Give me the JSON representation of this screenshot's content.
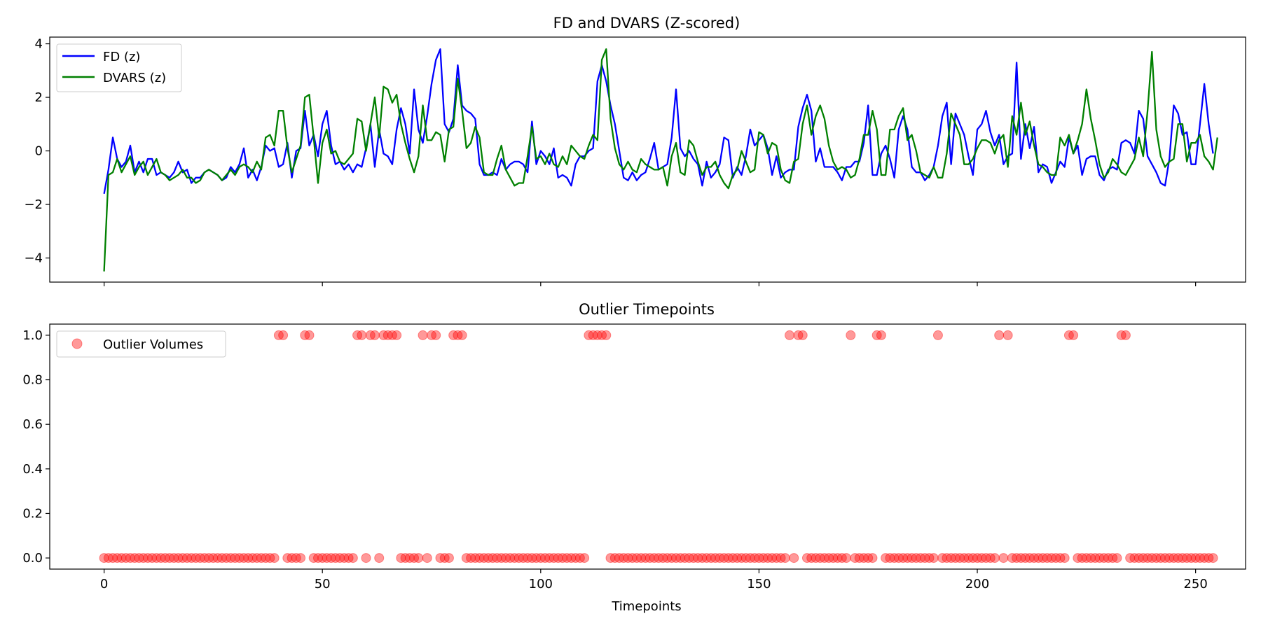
{
  "chart_data": [
    {
      "type": "line",
      "title": "FD and DVARS (Z-scored)",
      "xlabel": "",
      "ylabel": "",
      "xlim": [
        -12.45,
        261.45
      ],
      "ylim": [
        -4.9,
        4.25
      ],
      "xticks": [
        0,
        50,
        100,
        150,
        200,
        250
      ],
      "xtick_labels_visible": false,
      "yticks": [
        -4,
        -2,
        0,
        2,
        4
      ],
      "ytick_labels": [
        "−4",
        "−2",
        "0",
        "2",
        "4"
      ],
      "legend": {
        "position": "top-left"
      },
      "series": [
        {
          "name": "FD (z)",
          "color": "#0000ff",
          "values": [
            -1.6,
            -0.7,
            0.5,
            -0.3,
            -0.6,
            -0.4,
            0.2,
            -0.8,
            -0.4,
            -0.8,
            -0.3,
            -0.3,
            -0.9,
            -0.8,
            -0.9,
            -1.0,
            -0.8,
            -0.4,
            -0.8,
            -0.7,
            -1.2,
            -1.0,
            -1.0,
            -0.8,
            -0.7,
            -0.8,
            -0.9,
            -1.1,
            -1.0,
            -0.6,
            -0.8,
            -0.5,
            0.1,
            -1.0,
            -0.7,
            -1.1,
            -0.6,
            0.2,
            0.0,
            0.1,
            -0.6,
            -0.5,
            0.3,
            -1.0,
            0.0,
            0.1,
            1.5,
            0.2,
            0.6,
            -0.2,
            1.0,
            1.5,
            0.2,
            -0.5,
            -0.4,
            -0.7,
            -0.5,
            -0.8,
            -0.5,
            -0.6,
            0.1,
            1.0,
            -0.6,
            0.8,
            -0.1,
            -0.2,
            -0.5,
            0.8,
            1.6,
            1.0,
            -0.1,
            2.3,
            0.8,
            0.3,
            1.3,
            2.5,
            3.4,
            3.8,
            1.0,
            0.7,
            1.2,
            3.2,
            1.7,
            1.5,
            1.4,
            1.2,
            -0.5,
            -0.9,
            -0.9,
            -0.8,
            -0.9,
            -0.3,
            -0.7,
            -0.5,
            -0.4,
            -0.4,
            -0.5,
            -0.8,
            1.1,
            -0.5,
            0.0,
            -0.2,
            -0.5,
            0.1,
            -1.0,
            -0.9,
            -1.0,
            -1.3,
            -0.5,
            -0.2,
            -0.2,
            0.0,
            0.1,
            2.6,
            3.2,
            2.6,
            1.7,
            1.0,
            0.0,
            -1.0,
            -1.1,
            -0.8,
            -1.1,
            -0.9,
            -0.8,
            -0.3,
            0.3,
            -0.7,
            -0.6,
            -0.5,
            0.5,
            2.3,
            0.1,
            -0.2,
            0.0,
            -0.3,
            -0.5,
            -1.3,
            -0.4,
            -1.0,
            -0.8,
            -0.5,
            0.5,
            0.4,
            -1.0,
            -0.6,
            -0.9,
            -0.2,
            0.8,
            0.2,
            0.4,
            0.6,
            0.1,
            -0.9,
            -0.2,
            -1.0,
            -0.8,
            -0.7,
            -0.7,
            0.9,
            1.6,
            2.1,
            1.5,
            -0.4,
            0.1,
            -0.6,
            -0.6,
            -0.6,
            -0.8,
            -1.1,
            -0.6,
            -0.6,
            -0.4,
            -0.4,
            0.3,
            1.7,
            -0.9,
            -0.9,
            -0.1,
            0.2,
            -0.3,
            -1.0,
            0.8,
            1.3,
            0.8,
            -0.6,
            -0.8,
            -0.8,
            -1.1,
            -0.9,
            -0.6,
            0.2,
            1.3,
            1.8,
            -0.5,
            1.4,
            1.0,
            0.6,
            -0.2,
            -0.9,
            0.8,
            1.0,
            1.5,
            0.7,
            0.2,
            0.6,
            -0.5,
            -0.2,
            -0.1,
            3.3,
            -0.3,
            1.0,
            0.1,
            0.9,
            -0.8,
            -0.5,
            -0.6,
            -1.2,
            -0.8,
            -0.4,
            -0.6,
            0.5,
            -0.1,
            0.2,
            -0.9,
            -0.3,
            -0.2,
            -0.2,
            -0.9,
            -1.1,
            -0.7,
            -0.6,
            -0.7,
            0.3,
            0.4,
            0.3,
            -0.1,
            1.5,
            1.2,
            -0.2,
            -0.5,
            -0.8,
            -1.2,
            -1.3,
            -0.3,
            1.7,
            1.4,
            0.6,
            0.7,
            -0.5,
            -0.5,
            1.0,
            2.5,
            1.0,
            -0.1
          ]
        },
        {
          "name": "DVARS (z)",
          "color": "#008000",
          "values": [
            -4.5,
            -0.9,
            -0.8,
            -0.3,
            -0.8,
            -0.5,
            -0.2,
            -0.9,
            -0.6,
            -0.4,
            -0.9,
            -0.6,
            -0.3,
            -0.8,
            -0.9,
            -1.1,
            -1.0,
            -0.9,
            -0.7,
            -1.0,
            -1.0,
            -1.2,
            -1.1,
            -0.8,
            -0.7,
            -0.8,
            -0.9,
            -1.1,
            -0.9,
            -0.7,
            -0.9,
            -0.6,
            -0.5,
            -0.6,
            -0.8,
            -0.4,
            -0.7,
            0.5,
            0.6,
            0.2,
            1.5,
            1.5,
            0.1,
            -0.8,
            -0.3,
            0.2,
            2.0,
            2.1,
            0.5,
            -1.2,
            0.3,
            0.8,
            -0.1,
            0.0,
            -0.4,
            -0.5,
            -0.3,
            -0.1,
            1.2,
            1.1,
            0.0,
            1.0,
            2.0,
            0.5,
            2.4,
            2.3,
            1.8,
            2.1,
            1.0,
            0.3,
            -0.3,
            -0.8,
            -0.2,
            1.7,
            0.4,
            0.4,
            0.7,
            0.6,
            -0.4,
            0.8,
            0.9,
            2.7,
            1.5,
            0.1,
            0.3,
            0.9,
            0.5,
            -0.8,
            -0.9,
            -0.9,
            -0.3,
            0.2,
            -0.7,
            -1.0,
            -1.3,
            -1.2,
            -1.2,
            -0.2,
            0.9,
            -0.3,
            -0.2,
            -0.5,
            -0.1,
            -0.5,
            -0.6,
            -0.2,
            -0.5,
            0.2,
            0.0,
            -0.2,
            -0.3,
            0.2,
            0.6,
            0.4,
            3.4,
            3.8,
            1.2,
            0.1,
            -0.5,
            -0.7,
            -0.4,
            -0.7,
            -0.8,
            -0.3,
            -0.5,
            -0.6,
            -0.7,
            -0.7,
            -0.6,
            -1.3,
            -0.2,
            0.3,
            -0.8,
            -0.9,
            0.4,
            0.2,
            -0.4,
            -0.9,
            -0.6,
            -0.6,
            -0.4,
            -0.9,
            -1.2,
            -1.4,
            -0.9,
            -0.7,
            0.0,
            -0.4,
            -0.8,
            -0.7,
            0.7,
            0.6,
            -0.1,
            0.3,
            0.2,
            -0.7,
            -1.1,
            -1.2,
            -0.4,
            -0.3,
            1.0,
            1.7,
            0.6,
            1.3,
            1.7,
            1.2,
            0.2,
            -0.4,
            -0.7,
            -0.6,
            -0.7,
            -1.0,
            -0.9,
            -0.3,
            0.6,
            0.6,
            1.5,
            0.8,
            -0.9,
            -0.9,
            0.8,
            0.8,
            1.3,
            1.6,
            0.4,
            0.6,
            0.0,
            -0.8,
            -0.9,
            -1.0,
            -0.6,
            -1.0,
            -1.0,
            -0.1,
            1.4,
            1.0,
            0.6,
            -0.5,
            -0.5,
            -0.3,
            0.1,
            0.4,
            0.4,
            0.3,
            -0.1,
            0.4,
            0.6,
            -0.6,
            1.3,
            0.6,
            1.8,
            0.6,
            1.1,
            0.2,
            -0.5,
            -0.6,
            -0.8,
            -0.9,
            -0.9,
            0.5,
            0.2,
            0.6,
            -0.1,
            0.4,
            1.0,
            2.3,
            1.2,
            0.4,
            -0.5,
            -1.0,
            -0.8,
            -0.3,
            -0.5,
            -0.8,
            -0.9,
            -0.6,
            -0.3,
            0.5,
            -0.2,
            1.5,
            3.7,
            0.8,
            -0.2,
            -0.6,
            -0.4,
            -0.3,
            1.0,
            1.0,
            -0.4,
            0.3,
            0.3,
            0.6,
            -0.2,
            -0.4,
            -0.7,
            0.5
          ]
        }
      ]
    },
    {
      "type": "scatter",
      "title": "Outlier Timepoints",
      "xlabel": "Timepoints",
      "ylabel": "",
      "xlim": [
        -12.45,
        261.45
      ],
      "ylim": [
        -0.05,
        1.05
      ],
      "xticks": [
        0,
        50,
        100,
        150,
        200,
        250
      ],
      "xtick_labels": [
        "0",
        "50",
        "100",
        "150",
        "200",
        "250"
      ],
      "yticks": [
        0.0,
        0.2,
        0.4,
        0.6,
        0.8,
        1.0
      ],
      "ytick_labels": [
        "0.0",
        "0.2",
        "0.4",
        "0.6",
        "0.8",
        "1.0"
      ],
      "legend": {
        "position": "top-left"
      },
      "series": [
        {
          "name": "Outlier Volumes",
          "color": "#ff0000",
          "alpha": 0.4,
          "x_start": 0,
          "outlier_timepoints": [
            40,
            41,
            46,
            47,
            58,
            59,
            61,
            62,
            64,
            65,
            66,
            67,
            73,
            75,
            76,
            80,
            81,
            82,
            111,
            112,
            113,
            114,
            115,
            157,
            159,
            160,
            171,
            177,
            178,
            191,
            205,
            207,
            221,
            222,
            233,
            234
          ]
        }
      ]
    }
  ]
}
